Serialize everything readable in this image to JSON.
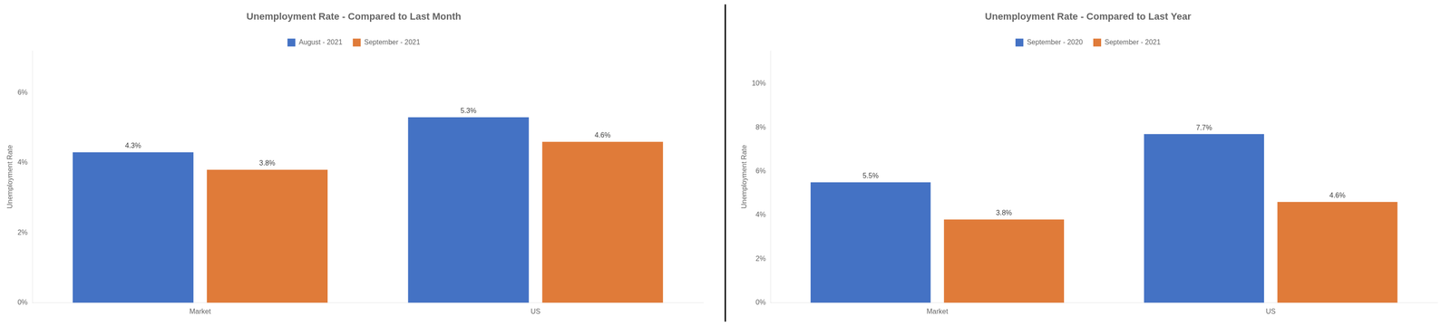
{
  "chart_data": [
    {
      "type": "bar",
      "title": "Unemployment Rate - Compared to Last Month",
      "categories": [
        "Market",
        "US"
      ],
      "series": [
        {
          "name": "August - 2021",
          "color": "#4472C4",
          "values": [
            4.3,
            5.3
          ],
          "value_labels": [
            "4.3%",
            "5.3%"
          ]
        },
        {
          "name": "September - 2021",
          "color": "#E07B39",
          "values": [
            3.8,
            4.6
          ],
          "value_labels": [
            "3.8%",
            "4.6%"
          ]
        }
      ],
      "ylabel": "Unemployment Rate",
      "ylim": [
        0,
        7.2
      ],
      "yticks": [
        {
          "value": 0,
          "label": "0%"
        },
        {
          "value": 2,
          "label": "2%"
        },
        {
          "value": 4,
          "label": "4%"
        },
        {
          "value": 6,
          "label": "6%"
        }
      ],
      "grid": false,
      "legend": "top",
      "data_labels": true
    },
    {
      "type": "bar",
      "title": "Unemployment Rate - Compared to Last Year",
      "categories": [
        "Market",
        "US"
      ],
      "series": [
        {
          "name": "September - 2020",
          "color": "#4472C4",
          "values": [
            5.5,
            7.7
          ],
          "value_labels": [
            "5.5%",
            "7.7%"
          ]
        },
        {
          "name": "September - 2021",
          "color": "#E07B39",
          "values": [
            3.8,
            4.6
          ],
          "value_labels": [
            "3.8%",
            "4.6%"
          ]
        }
      ],
      "ylabel": "Unemployment Rate",
      "ylim": [
        0,
        11.5
      ],
      "yticks": [
        {
          "value": 0,
          "label": "0%"
        },
        {
          "value": 2,
          "label": "2%"
        },
        {
          "value": 4,
          "label": "4%"
        },
        {
          "value": 6,
          "label": "6%"
        },
        {
          "value": 8,
          "label": "8%"
        },
        {
          "value": 10,
          "label": "10%"
        }
      ],
      "grid": false,
      "legend": "top",
      "data_labels": true
    }
  ]
}
